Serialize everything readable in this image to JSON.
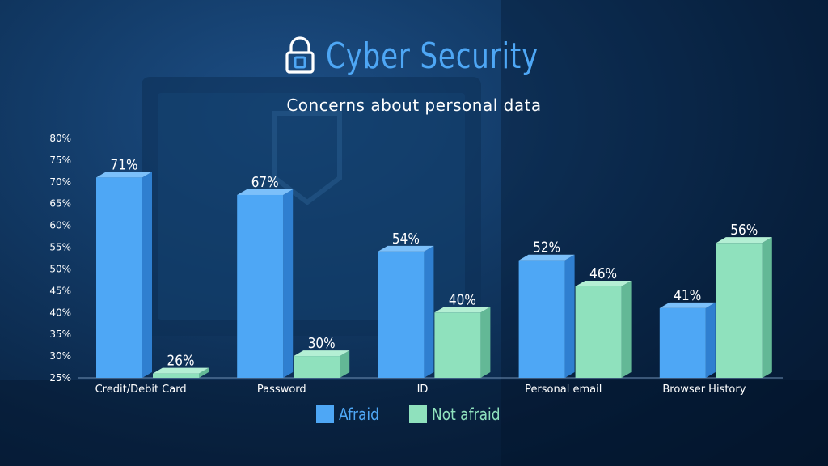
{
  "title": "Cyber Security",
  "subtitle": "Concerns about personal data",
  "icons": {
    "title_icon": "padlock-icon"
  },
  "colors": {
    "title": "#4ea7f5",
    "afraid": "#4ea7f5",
    "not_afraid": "#8fe1bd"
  },
  "legend": [
    {
      "label": "Afraid",
      "color": "#4ea7f5"
    },
    {
      "label": "Not afraid",
      "color": "#8fe1bd"
    }
  ],
  "chart_data": {
    "type": "bar",
    "categories": [
      "Credit/Debit Card",
      "Password",
      "ID",
      "Personal email",
      "Browser History"
    ],
    "series": [
      {
        "name": "Afraid",
        "values": [
          71,
          67,
          54,
          52,
          41
        ],
        "labels": [
          "71%",
          "67%",
          "54%",
          "52%",
          "41%"
        ]
      },
      {
        "name": "Not afraid",
        "values": [
          26,
          30,
          40,
          46,
          56
        ],
        "labels": [
          "26%",
          "30%",
          "40%",
          "46%",
          "56%"
        ]
      }
    ],
    "ylim": [
      25,
      80
    ],
    "yticks": [
      "25%",
      "30%",
      "35%",
      "40%",
      "45%",
      "50%",
      "55%",
      "60%",
      "65%",
      "70%",
      "75%",
      "80%"
    ],
    "grid": false,
    "legend_position": "bottom"
  }
}
